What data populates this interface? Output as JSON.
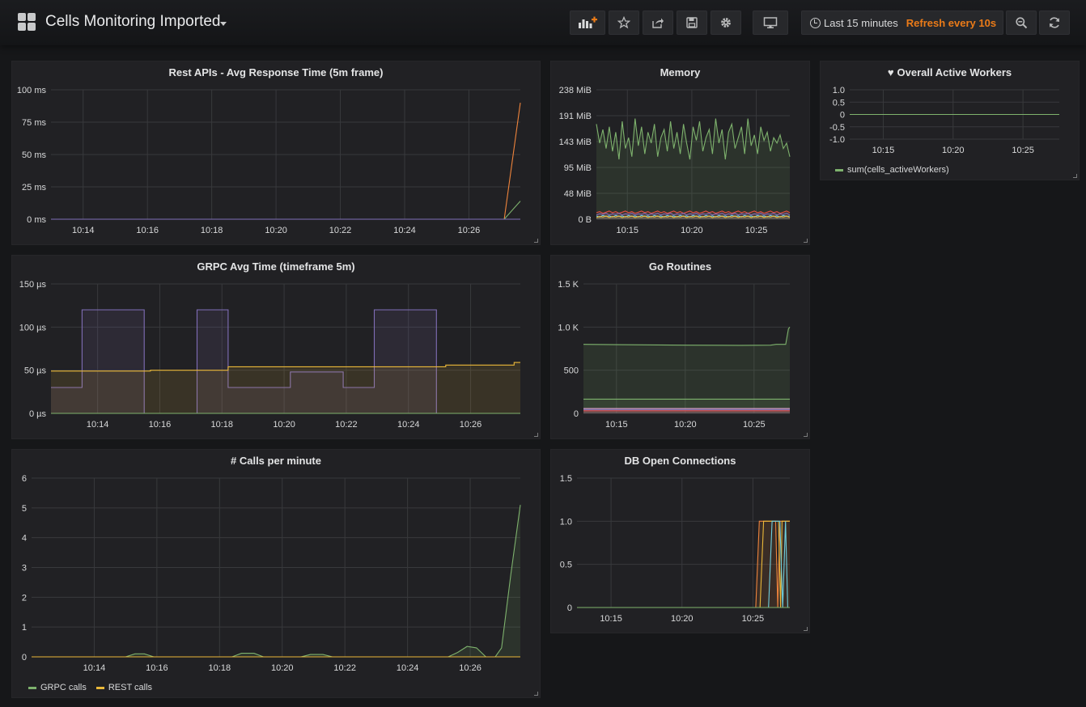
{
  "dashboard": {
    "title": "Cells Monitoring Imported"
  },
  "toolbar": {
    "add_panel_icon": "add-panel-icon",
    "star_icon": "star-icon",
    "share_icon": "share-icon",
    "save_icon": "save-icon",
    "settings_icon": "gear-icon",
    "tv_icon": "monitor-icon",
    "zoom_icon": "zoom-out-icon",
    "refresh_icon": "refresh-icon"
  },
  "timepicker": {
    "range": "Last 15 minutes",
    "refresh": "Refresh every 10s"
  },
  "colors": {
    "accent": "#eb7b18",
    "green": "#7eb26d",
    "yellow": "#eab839",
    "purple": "#806eb7",
    "orange": "#ef843c",
    "cyan": "#6ed0e0"
  },
  "panels": {
    "rest": {
      "title": "Rest APIs - Avg Response Time (5m frame)"
    },
    "memory": {
      "title": "Memory"
    },
    "workers": {
      "title": "Overall Active Workers"
    },
    "grpc": {
      "title": "GRPC Avg Time (timeframe 5m)"
    },
    "goroutines": {
      "title": "Go Routines"
    },
    "calls": {
      "title": "# Calls per minute"
    },
    "db": {
      "title": "DB Open Connections"
    }
  },
  "chart_data": [
    {
      "id": "rest",
      "type": "line",
      "title": "Rest APIs - Avg Response Time (5m frame)",
      "ylim": [
        0,
        100
      ],
      "y_ticks": [
        "0 ms",
        "25 ms",
        "50 ms",
        "75 ms",
        "100 ms"
      ],
      "x_ticks": [
        "10:14",
        "10:16",
        "10:18",
        "10:20",
        "10:22",
        "10:24",
        "10:26"
      ],
      "xlim": [
        13.0,
        27.6
      ],
      "x_tick_values": [
        14,
        16,
        18,
        20,
        22,
        24,
        26
      ],
      "series": [
        {
          "color": "#ef843c",
          "points": [
            [
              13.0,
              0
            ],
            [
              27.1,
              0
            ],
            [
              27.6,
              90
            ]
          ]
        },
        {
          "color": "#7eb26d",
          "points": [
            [
              13.0,
              0
            ],
            [
              27.1,
              0
            ],
            [
              27.6,
              14
            ]
          ]
        },
        {
          "color": "#806eb7",
          "points": [
            [
              13.0,
              0
            ],
            [
              27.6,
              0
            ]
          ]
        }
      ],
      "grid": true
    },
    {
      "id": "memory",
      "type": "area",
      "title": "Memory",
      "ylim": [
        0,
        238
      ],
      "y_ticks": [
        "0 B",
        "48 MiB",
        "95 MiB",
        "143 MiB",
        "191 MiB",
        "238 MiB"
      ],
      "x_ticks": [
        "10:15",
        "10:20",
        "10:25"
      ],
      "xlim": [
        12.6,
        27.6
      ],
      "x_tick_values": [
        15,
        20,
        25
      ],
      "series": [
        {
          "color": "#7eb26d",
          "values": [
            175,
            140,
            165,
            130,
            170,
            125,
            160,
            110,
            180,
            130,
            150,
            115,
            185,
            135,
            170,
            120,
            160,
            140,
            175,
            115,
            150,
            165,
            125,
            180,
            130,
            160,
            120,
            175,
            140,
            110,
            170,
            145,
            180,
            125,
            150,
            165,
            120,
            185,
            140,
            165,
            110,
            160,
            175,
            130,
            150,
            170,
            120,
            185,
            135,
            155,
            120,
            170,
            145,
            160,
            125,
            150,
            140,
            155,
            130,
            140,
            115
          ]
        },
        {
          "color": "#e24d42",
          "values": [
            12,
            14,
            11,
            13,
            15,
            12,
            14,
            11,
            13,
            15,
            12,
            14,
            11,
            13,
            15,
            12,
            14,
            11,
            13,
            15,
            12,
            14,
            11,
            13,
            15,
            12,
            14,
            11,
            13,
            15,
            12,
            14,
            11,
            13,
            15,
            12,
            14,
            11,
            13,
            15,
            12,
            14,
            11,
            13,
            15,
            12,
            14,
            11,
            13,
            15,
            12,
            14,
            11,
            13,
            15,
            12,
            14,
            11,
            13,
            15,
            12
          ]
        },
        {
          "color": "#806eb7",
          "values": [
            8,
            10,
            9,
            11,
            8,
            10,
            9,
            11,
            8,
            10,
            9,
            11,
            8,
            10,
            9,
            11,
            8,
            10,
            9,
            11,
            8,
            10,
            9,
            11,
            8,
            10,
            9,
            11,
            8,
            10,
            9,
            11,
            8,
            10,
            9,
            11,
            8,
            10,
            9,
            11,
            8,
            10,
            9,
            11,
            8,
            10,
            9,
            11,
            8,
            10,
            9,
            11,
            8,
            10,
            9,
            11,
            8,
            10,
            9,
            11,
            8
          ]
        },
        {
          "color": "#6ed0e0",
          "values": [
            6,
            4,
            7,
            5,
            6,
            4,
            7,
            5,
            6,
            4,
            7,
            5,
            6,
            4,
            7,
            5,
            6,
            4,
            7,
            5,
            6,
            4,
            7,
            5,
            6,
            4,
            7,
            5,
            6,
            4,
            7,
            5,
            6,
            4,
            7,
            5,
            6,
            4,
            7,
            5,
            6,
            4,
            7,
            5,
            6,
            4,
            7,
            5,
            6,
            4,
            7,
            5,
            6,
            4,
            7,
            5,
            6,
            4,
            7,
            5,
            6
          ]
        },
        {
          "color": "#eab839",
          "values": [
            3,
            5,
            4,
            6,
            3,
            5,
            4,
            6,
            3,
            5,
            4,
            6,
            3,
            5,
            4,
            6,
            3,
            5,
            4,
            6,
            3,
            5,
            4,
            6,
            3,
            5,
            4,
            6,
            3,
            5,
            4,
            6,
            3,
            5,
            4,
            6,
            3,
            5,
            4,
            6,
            3,
            5,
            4,
            6,
            3,
            5,
            4,
            6,
            3,
            5,
            4,
            6,
            3,
            5,
            4,
            6,
            3,
            5,
            4,
            6,
            3
          ]
        }
      ],
      "fill": true,
      "grid": true
    },
    {
      "id": "workers",
      "type": "line",
      "title": "Overall Active Workers",
      "ylim": [
        -1.0,
        1.0
      ],
      "y_ticks": [
        "-1.0",
        "-0.5",
        "0",
        "0.5",
        "1.0"
      ],
      "y_tick_values": [
        -1.0,
        -0.5,
        0,
        0.5,
        1.0
      ],
      "x_ticks": [
        "10:15",
        "10:20",
        "10:25"
      ],
      "xlim": [
        12.6,
        27.6
      ],
      "x_tick_values": [
        15,
        20,
        25
      ],
      "series": [
        {
          "name": "sum(cells_activeWorkers)",
          "color": "#7eb26d",
          "points": [
            [
              12.6,
              0
            ],
            [
              27.6,
              0
            ]
          ]
        }
      ],
      "legend": "bottom",
      "grid": true
    },
    {
      "id": "grpc",
      "type": "area",
      "title": "GRPC Avg Time (timeframe 5m)",
      "ylim": [
        0,
        150
      ],
      "y_ticks": [
        "0 µs",
        "50 µs",
        "100 µs",
        "150 µs"
      ],
      "x_ticks": [
        "10:14",
        "10:16",
        "10:18",
        "10:20",
        "10:22",
        "10:24",
        "10:26"
      ],
      "xlim": [
        12.5,
        27.6
      ],
      "x_tick_values": [
        14,
        16,
        18,
        20,
        22,
        24,
        26
      ],
      "series": [
        {
          "color": "#806eb7",
          "step": true,
          "points": [
            [
              12.5,
              30
            ],
            [
              13.5,
              30
            ],
            [
              13.5,
              120
            ],
            [
              15.5,
              120
            ],
            [
              15.5,
              0
            ],
            [
              17.2,
              0
            ],
            [
              17.2,
              120
            ],
            [
              18.2,
              120
            ],
            [
              18.2,
              30
            ],
            [
              20.2,
              30
            ],
            [
              20.2,
              48
            ],
            [
              21.9,
              48
            ],
            [
              21.9,
              30
            ],
            [
              22.9,
              30
            ],
            [
              22.9,
              120
            ],
            [
              24.9,
              120
            ],
            [
              24.9,
              0
            ],
            [
              27.6,
              0
            ]
          ]
        },
        {
          "color": "#eab839",
          "step": true,
          "points": [
            [
              12.5,
              49
            ],
            [
              15.7,
              49
            ],
            [
              15.7,
              50
            ],
            [
              18.2,
              50
            ],
            [
              18.2,
              54
            ],
            [
              25.2,
              54
            ],
            [
              25.2,
              56
            ],
            [
              27.4,
              56
            ],
            [
              27.4,
              59
            ],
            [
              27.6,
              59
            ]
          ]
        },
        {
          "color": "#7eb26d",
          "points": [
            [
              12.5,
              0
            ],
            [
              27.6,
              0
            ]
          ]
        }
      ],
      "fill": true,
      "grid": true
    },
    {
      "id": "goroutines",
      "type": "area",
      "title": "Go Routines",
      "ylim": [
        0,
        1500
      ],
      "y_ticks": [
        "0",
        "500",
        "1.0 K",
        "1.5 K"
      ],
      "y_tick_values": [
        0,
        500,
        1000,
        1500
      ],
      "x_ticks": [
        "10:15",
        "10:20",
        "10:25"
      ],
      "xlim": [
        12.6,
        27.6
      ],
      "x_tick_values": [
        15,
        20,
        25
      ],
      "series": [
        {
          "color": "#7eb26d",
          "points": [
            [
              12.6,
              800
            ],
            [
              16.0,
              795
            ],
            [
              20.0,
              790
            ],
            [
              24.0,
              788
            ],
            [
              26.2,
              790
            ],
            [
              26.6,
              800
            ],
            [
              27.3,
              800
            ],
            [
              27.5,
              980
            ],
            [
              27.6,
              1000
            ]
          ]
        },
        {
          "color": "#7eb26d",
          "points": [
            [
              12.6,
              165
            ],
            [
              27.6,
              165
            ]
          ]
        },
        {
          "color": "#e5a8e2",
          "points": [
            [
              12.6,
              55
            ],
            [
              27.6,
              55
            ]
          ]
        },
        {
          "color": "#806eb7",
          "points": [
            [
              12.6,
              40
            ],
            [
              27.6,
              40
            ]
          ]
        },
        {
          "color": "#e24d42",
          "points": [
            [
              12.6,
              30
            ],
            [
              27.6,
              30
            ]
          ]
        }
      ],
      "fill": true,
      "grid": true
    },
    {
      "id": "calls",
      "type": "area",
      "title": "# Calls per minute",
      "ylim": [
        0,
        6
      ],
      "y_ticks": [
        "0",
        "1",
        "2",
        "3",
        "4",
        "5",
        "6"
      ],
      "y_tick_values": [
        0,
        1,
        2,
        3,
        4,
        5,
        6
      ],
      "x_ticks": [
        "10:14",
        "10:16",
        "10:18",
        "10:20",
        "10:22",
        "10:24",
        "10:26"
      ],
      "xlim": [
        12.0,
        27.6
      ],
      "x_tick_values": [
        14,
        16,
        18,
        20,
        22,
        24,
        26
      ],
      "series": [
        {
          "name": "GRPC calls",
          "color": "#7eb26d",
          "points": [
            [
              12.0,
              0
            ],
            [
              15.0,
              0
            ],
            [
              15.3,
              0.1
            ],
            [
              15.6,
              0.1
            ],
            [
              15.9,
              0
            ],
            [
              18.4,
              0
            ],
            [
              18.7,
              0.12
            ],
            [
              19.1,
              0.12
            ],
            [
              19.4,
              0
            ],
            [
              20.6,
              0
            ],
            [
              20.9,
              0.08
            ],
            [
              21.3,
              0.08
            ],
            [
              21.6,
              0
            ],
            [
              25.3,
              0
            ],
            [
              25.6,
              0.15
            ],
            [
              25.9,
              0.35
            ],
            [
              26.2,
              0.3
            ],
            [
              26.5,
              0
            ],
            [
              26.8,
              0
            ],
            [
              27.0,
              0.3
            ],
            [
              27.3,
              2.8
            ],
            [
              27.6,
              5.1
            ]
          ]
        },
        {
          "name": "REST calls",
          "color": "#eab839",
          "points": [
            [
              12.0,
              0
            ],
            [
              27.6,
              0
            ]
          ]
        }
      ],
      "legend": "bottom",
      "fill": true,
      "grid": true
    },
    {
      "id": "db",
      "type": "line",
      "title": "DB Open Connections",
      "ylim": [
        0,
        1.5
      ],
      "y_ticks": [
        "0",
        "0.5",
        "1.0",
        "1.5"
      ],
      "y_tick_values": [
        0,
        0.5,
        1.0,
        1.5
      ],
      "x_ticks": [
        "10:15",
        "10:20",
        "10:25"
      ],
      "xlim": [
        12.6,
        27.6
      ],
      "x_tick_values": [
        15,
        20,
        25
      ],
      "series": [
        {
          "color": "#ef843c",
          "fill": true,
          "points": [
            [
              12.6,
              0
            ],
            [
              25.2,
              0
            ],
            [
              25.45,
              1
            ],
            [
              26.6,
              1
            ],
            [
              26.75,
              0
            ],
            [
              26.9,
              1
            ],
            [
              27.6,
              1
            ]
          ]
        },
        {
          "color": "#eab839",
          "points": [
            [
              12.6,
              0
            ],
            [
              25.5,
              0
            ],
            [
              25.75,
              1
            ],
            [
              26.8,
              1
            ],
            [
              26.95,
              0
            ],
            [
              27.05,
              1
            ],
            [
              27.6,
              1
            ]
          ]
        },
        {
          "color": "#6ed0e0",
          "points": [
            [
              12.6,
              0
            ],
            [
              26.1,
              0
            ],
            [
              26.35,
              1
            ],
            [
              26.9,
              1
            ],
            [
              27.1,
              0
            ],
            [
              27.3,
              1
            ],
            [
              27.45,
              0
            ],
            [
              27.6,
              0
            ]
          ]
        },
        {
          "color": "#7eb26d",
          "points": [
            [
              12.6,
              0
            ],
            [
              27.6,
              0
            ]
          ]
        }
      ],
      "grid": true
    }
  ]
}
